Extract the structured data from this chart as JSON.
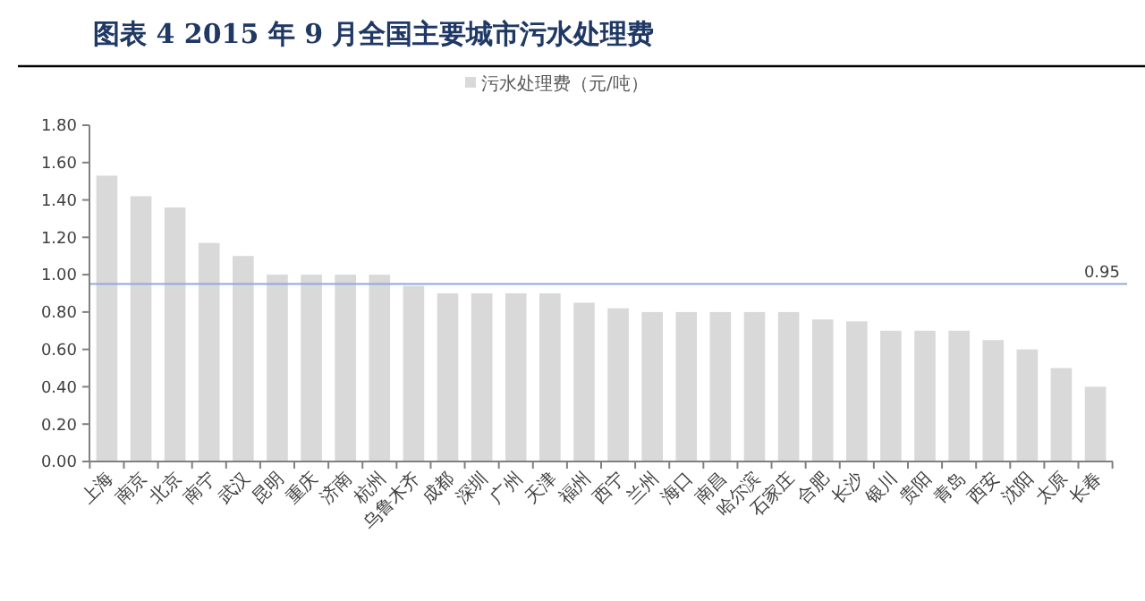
{
  "chart_data": {
    "type": "bar",
    "title": "图表 4   2015 年 9 月全国主要城市污水处理费",
    "categories": [
      "上海",
      "南京",
      "北京",
      "南宁",
      "武汉",
      "昆明",
      "重庆",
      "济南",
      "杭州",
      "乌鲁木齐",
      "成都",
      "深圳",
      "广州",
      "天津",
      "福州",
      "西宁",
      "兰州",
      "海口",
      "南昌",
      "哈尔滨",
      "石家庄",
      "合肥",
      "长沙",
      "银川",
      "贵阳",
      "青岛",
      "西安",
      "沈阳",
      "太原",
      "长春"
    ],
    "series": [
      {
        "name": "污水处理费（元/吨）",
        "color": "#d9d9d9",
        "values": [
          1.53,
          1.42,
          1.36,
          1.17,
          1.1,
          1.0,
          1.0,
          1.0,
          1.0,
          0.94,
          0.9,
          0.9,
          0.9,
          0.9,
          0.85,
          0.82,
          0.8,
          0.8,
          0.8,
          0.8,
          0.8,
          0.76,
          0.75,
          0.7,
          0.7,
          0.7,
          0.65,
          0.6,
          0.5,
          0.4
        ]
      }
    ],
    "ylim": [
      0,
      1.8
    ],
    "yticks": [
      {
        "value": 0,
        "label": "0.00"
      },
      {
        "value": 0.2,
        "label": "0.20"
      },
      {
        "value": 0.4,
        "label": "0.40"
      },
      {
        "value": 0.6,
        "label": "0.60"
      },
      {
        "value": 0.8,
        "label": "0.80"
      },
      {
        "value": 1.0,
        "label": "1.00"
      },
      {
        "value": 1.2,
        "label": "1.20"
      },
      {
        "value": 1.4,
        "label": "1.40"
      },
      {
        "value": 1.6,
        "label": "1.60"
      },
      {
        "value": 1.8,
        "label": "1.80"
      }
    ],
    "ref_lines": [
      {
        "axis": "y",
        "value": 0.95,
        "label": "0.95",
        "color": "#8eaadb"
      }
    ],
    "legend": "top",
    "grid": false
  }
}
